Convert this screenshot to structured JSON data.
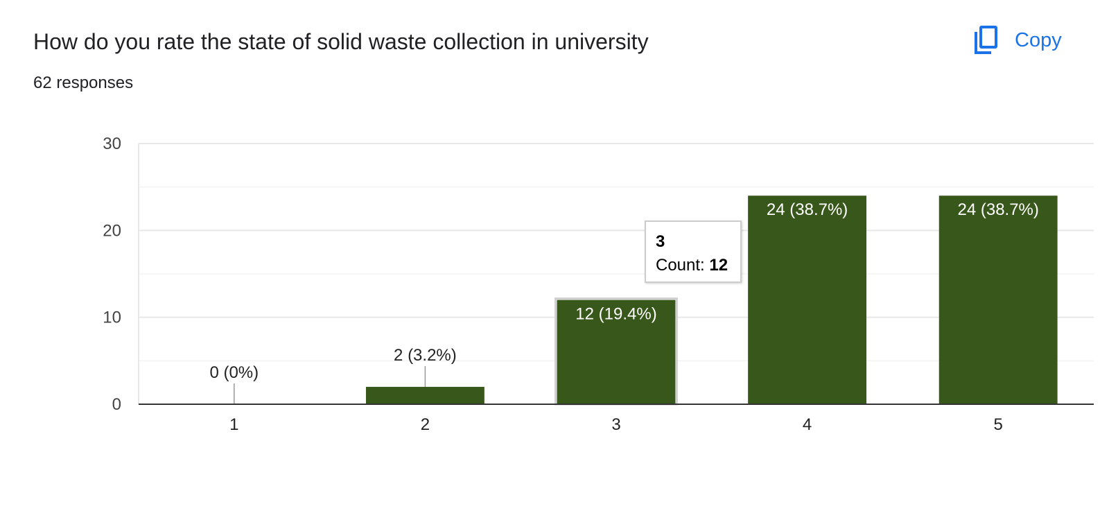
{
  "header": {
    "title": "How do you rate the state of solid waste collection in university",
    "responses": "62 responses",
    "copy_label": "Copy"
  },
  "tooltip": {
    "category": "3",
    "count_label": "Count: ",
    "count_value": "12"
  },
  "chart_data": {
    "type": "bar",
    "title": "",
    "xlabel": "",
    "ylabel": "",
    "categories": [
      "1",
      "2",
      "3",
      "4",
      "5"
    ],
    "values": [
      0,
      2,
      12,
      24,
      24
    ],
    "data_labels": [
      "0 (0%)",
      "2 (3.2%)",
      "12 (19.4%)",
      "24 (38.7%)",
      "24 (38.7%)"
    ],
    "ylim": [
      0,
      30
    ],
    "yticks": [
      0,
      10,
      20,
      30
    ],
    "grid": true,
    "bar_color": "#38571a",
    "highlighted_category": "3"
  }
}
